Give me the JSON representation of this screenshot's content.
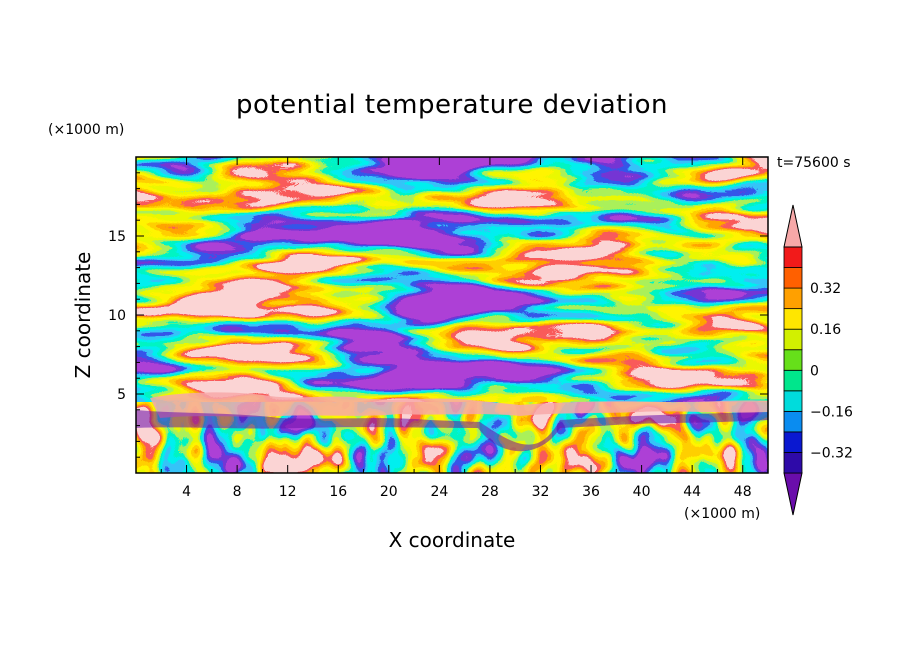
{
  "chart_data": {
    "type": "heatmap",
    "title": "potential temperature deviation",
    "xlabel": "X coordinate",
    "ylabel": "Z coordinate",
    "x_units": "(×1000 m)",
    "y_units": "(×1000 m)",
    "time_label": "t=75600 s",
    "xlim": [
      0,
      50
    ],
    "ylim": [
      0,
      20
    ],
    "x_ticks": [
      4,
      8,
      12,
      16,
      20,
      24,
      28,
      32,
      36,
      40,
      44,
      48
    ],
    "y_ticks": [
      5,
      10,
      15
    ],
    "colorbar": {
      "levels": [
        -0.48,
        -0.4,
        -0.32,
        -0.24,
        -0.16,
        -0.08,
        0,
        0.08,
        0.16,
        0.24,
        0.32,
        0.4,
        0.48
      ],
      "labels": [
        "0.32",
        "0.16",
        "0",
        "−0.16",
        "−0.32"
      ],
      "label_values": [
        0.32,
        0.16,
        0,
        -0.16,
        -0.32
      ],
      "colors": [
        "#6a0dab",
        "#2e0aa8",
        "#0a18d0",
        "#0a8cf0",
        "#00dcdc",
        "#00e68c",
        "#66e01a",
        "#d2f000",
        "#ffe600",
        "#ffa000",
        "#ff6000",
        "#f21a1a",
        "#f7a8a8"
      ],
      "extend": "both"
    }
  }
}
